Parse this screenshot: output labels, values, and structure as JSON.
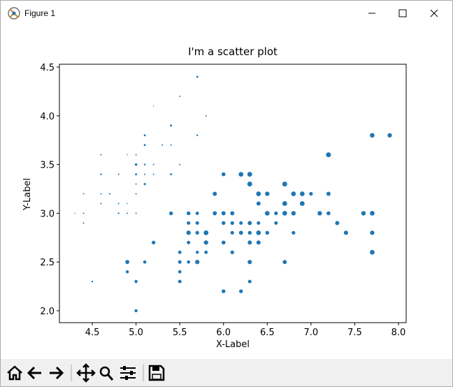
{
  "window": {
    "title": "Figure 1"
  },
  "chart_data": {
    "type": "scatter",
    "title": "I'm a scatter plot",
    "x_label": "X-Label",
    "y_label": "Y-Label",
    "color": "#1f77b4",
    "xlim": [
      4.124,
      8.088
    ],
    "ylim": [
      1.878,
      4.529
    ],
    "xticks": [
      4.5,
      {
        "value": 5.0,
        "label": "5.0"
      },
      5.5,
      {
        "value": 6.0,
        "label": "6.0"
      },
      6.5,
      {
        "value": 7.0,
        "label": "7.0"
      },
      7.5,
      {
        "value": 8.0,
        "label": "8.0"
      }
    ],
    "yticks": [
      {
        "value": 2.0,
        "label": "2.0"
      },
      2.5,
      {
        "value": 3.0,
        "label": "3.0"
      },
      3.5,
      {
        "value": 4.0,
        "label": "4.0"
      },
      4.5
    ],
    "x": [
      5.1,
      4.9,
      4.7,
      4.6,
      5.0,
      5.4,
      4.6,
      5.0,
      4.4,
      4.9,
      5.4,
      4.8,
      4.8,
      4.3,
      5.8,
      5.7,
      5.4,
      5.1,
      5.7,
      5.1,
      5.4,
      5.1,
      4.6,
      5.1,
      4.8,
      5.0,
      5.0,
      5.2,
      5.2,
      4.7,
      4.8,
      5.4,
      5.2,
      5.5,
      4.9,
      5.0,
      5.5,
      4.9,
      4.4,
      5.1,
      5.0,
      4.5,
      4.4,
      5.0,
      5.1,
      4.8,
      5.1,
      4.6,
      5.3,
      5.0,
      7.0,
      6.4,
      6.9,
      5.5,
      6.5,
      5.7,
      6.3,
      4.9,
      6.6,
      5.2,
      5.0,
      5.9,
      6.0,
      6.1,
      5.6,
      6.7,
      5.6,
      5.8,
      6.2,
      5.6,
      5.9,
      6.1,
      6.3,
      6.1,
      6.4,
      6.6,
      6.8,
      6.7,
      6.0,
      5.7,
      5.5,
      5.5,
      5.8,
      6.0,
      5.4,
      6.0,
      6.7,
      6.3,
      5.6,
      5.5,
      5.5,
      6.1,
      5.8,
      5.0,
      5.6,
      5.7,
      5.7,
      6.2,
      5.1,
      5.7,
      6.3,
      5.8,
      7.1,
      6.3,
      6.5,
      7.6,
      4.9,
      7.3,
      6.7,
      7.2,
      6.5,
      6.4,
      6.8,
      5.7,
      5.8,
      6.4,
      6.5,
      7.7,
      7.7,
      6.0,
      6.9,
      5.6,
      7.7,
      6.3,
      6.7,
      7.2,
      6.2,
      6.1,
      6.4,
      7.2,
      7.4,
      7.9,
      6.4,
      6.3,
      6.1,
      7.7,
      6.3,
      6.4,
      6.0,
      6.9,
      6.7,
      6.9,
      5.8,
      6.8,
      6.7,
      6.7,
      6.3,
      6.5,
      6.2,
      5.9
    ],
    "series": [
      {
        "values": [
          3.5,
          3.0,
          3.2,
          3.1,
          3.6,
          3.9,
          3.4,
          3.4,
          2.9,
          3.1,
          3.7,
          3.4,
          3.0,
          3.0,
          4.0,
          4.4,
          3.9,
          3.5,
          3.8,
          3.8,
          3.4,
          3.7,
          3.6,
          3.3,
          3.4,
          3.0,
          3.4,
          3.5,
          3.4,
          3.2,
          3.1,
          3.4,
          4.1,
          4.2,
          3.1,
          3.2,
          3.5,
          3.6,
          3.0,
          3.4,
          3.5,
          2.3,
          3.2,
          3.5,
          3.8,
          3.0,
          3.8,
          3.2,
          3.7,
          3.3,
          3.2,
          3.2,
          3.1,
          2.3,
          2.8,
          2.8,
          3.3,
          2.4,
          2.9,
          2.7,
          2.0,
          3.0,
          2.2,
          2.9,
          2.9,
          3.1,
          3.0,
          2.7,
          2.2,
          2.5,
          3.2,
          2.8,
          2.5,
          2.8,
          2.9,
          3.0,
          2.8,
          3.0,
          2.9,
          2.6,
          2.4,
          2.4,
          2.7,
          2.7,
          3.0,
          3.4,
          3.1,
          2.3,
          3.0,
          2.5,
          2.6,
          3.0,
          2.6,
          2.3,
          2.7,
          3.0,
          2.9,
          2.9,
          2.5,
          2.8,
          3.3,
          2.7,
          3.0,
          2.9,
          3.0,
          3.0,
          2.5,
          2.9,
          2.5,
          3.6,
          3.2,
          2.7,
          3.0,
          2.5,
          2.8,
          3.2,
          3.0,
          3.8,
          2.6,
          2.2,
          3.2,
          2.8,
          2.8,
          2.7,
          3.3,
          3.2,
          2.8,
          3.0,
          2.8,
          3.0,
          2.8,
          3.8,
          2.8,
          2.8,
          2.6,
          3.0,
          3.4,
          3.1,
          3.0,
          3.1,
          3.1,
          3.1,
          2.7,
          3.2,
          3.3,
          3.0,
          2.5,
          3.0,
          3.4,
          3.0
        ],
        "sizes": [
          2,
          2,
          2,
          2,
          2,
          4,
          3,
          2,
          2,
          1,
          2,
          2,
          1,
          1,
          2,
          4,
          4,
          3,
          3,
          3,
          2,
          4,
          2,
          5,
          2,
          2,
          4,
          2,
          2,
          2,
          2,
          4,
          1,
          2,
          1,
          2,
          2,
          1,
          2,
          2,
          3,
          3,
          2,
          6,
          4,
          3,
          2,
          2,
          2,
          2,
          14,
          15,
          15,
          13,
          15,
          13,
          16,
          10,
          13,
          14,
          10,
          15,
          10,
          14,
          13,
          14,
          15,
          10,
          15,
          11,
          18,
          13,
          15,
          12,
          13,
          14,
          14,
          17,
          15,
          10,
          11,
          10,
          12,
          16,
          15,
          16,
          15,
          13,
          13,
          13,
          12,
          14,
          12,
          10,
          13,
          12,
          13,
          13,
          11,
          13,
          25,
          19,
          21,
          18,
          22,
          21,
          17,
          18,
          18,
          25,
          20,
          19,
          21,
          20,
          24,
          23,
          18,
          22,
          23,
          15,
          23,
          20,
          20,
          18,
          21,
          18,
          18,
          18,
          21,
          16,
          19,
          20,
          22,
          15,
          14,
          23,
          24,
          18,
          18,
          21,
          24,
          23,
          19,
          23,
          25,
          23,
          19,
          20,
          23,
          18
        ]
      }
    ]
  }
}
